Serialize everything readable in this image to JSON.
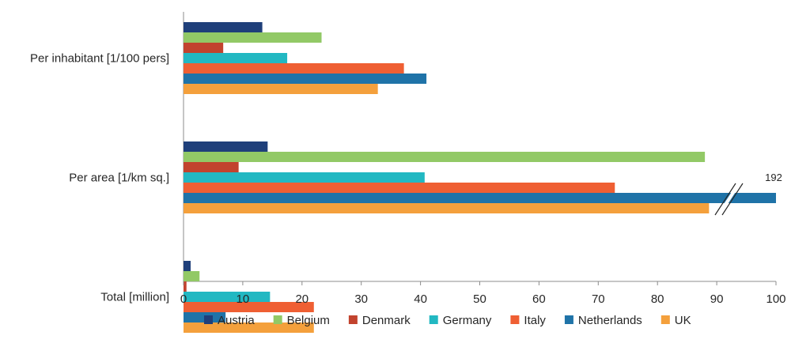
{
  "chart_data": {
    "type": "bar",
    "orientation": "horizontal",
    "categories": [
      "Per inhabitant [1/100 pers]",
      "Per area [1/km sq.]",
      "Total [million]"
    ],
    "series": [
      {
        "name": "Austria",
        "color": "#1f3f7a",
        "values": [
          13.3,
          14.2,
          1.2
        ]
      },
      {
        "name": "Belgium",
        "color": "#92c966",
        "values": [
          23.3,
          88.0,
          2.7
        ]
      },
      {
        "name": "Denmark",
        "color": "#c2432e",
        "values": [
          6.7,
          9.3,
          0.5
        ]
      },
      {
        "name": "Germany",
        "color": "#22b8c2",
        "values": [
          17.5,
          40.7,
          14.6
        ]
      },
      {
        "name": "Italy",
        "color": "#ef5f33",
        "values": [
          37.2,
          72.8,
          22.0
        ]
      },
      {
        "name": "Netherlands",
        "color": "#1f73a8",
        "values": [
          41.0,
          192,
          7.1
        ]
      },
      {
        "name": "UK",
        "color": "#f4a03c",
        "values": [
          32.8,
          88.7,
          22.0
        ]
      }
    ],
    "xlim": [
      0,
      100
    ],
    "xticks": [
      0,
      10,
      20,
      30,
      40,
      50,
      60,
      70,
      80,
      90,
      100
    ],
    "title": "",
    "xlabel": "",
    "ylabel": "",
    "legend_position": "bottom",
    "grid": false,
    "axis_break": {
      "series": "Netherlands",
      "category": "Per area [1/km sq.]",
      "label": "192"
    }
  }
}
